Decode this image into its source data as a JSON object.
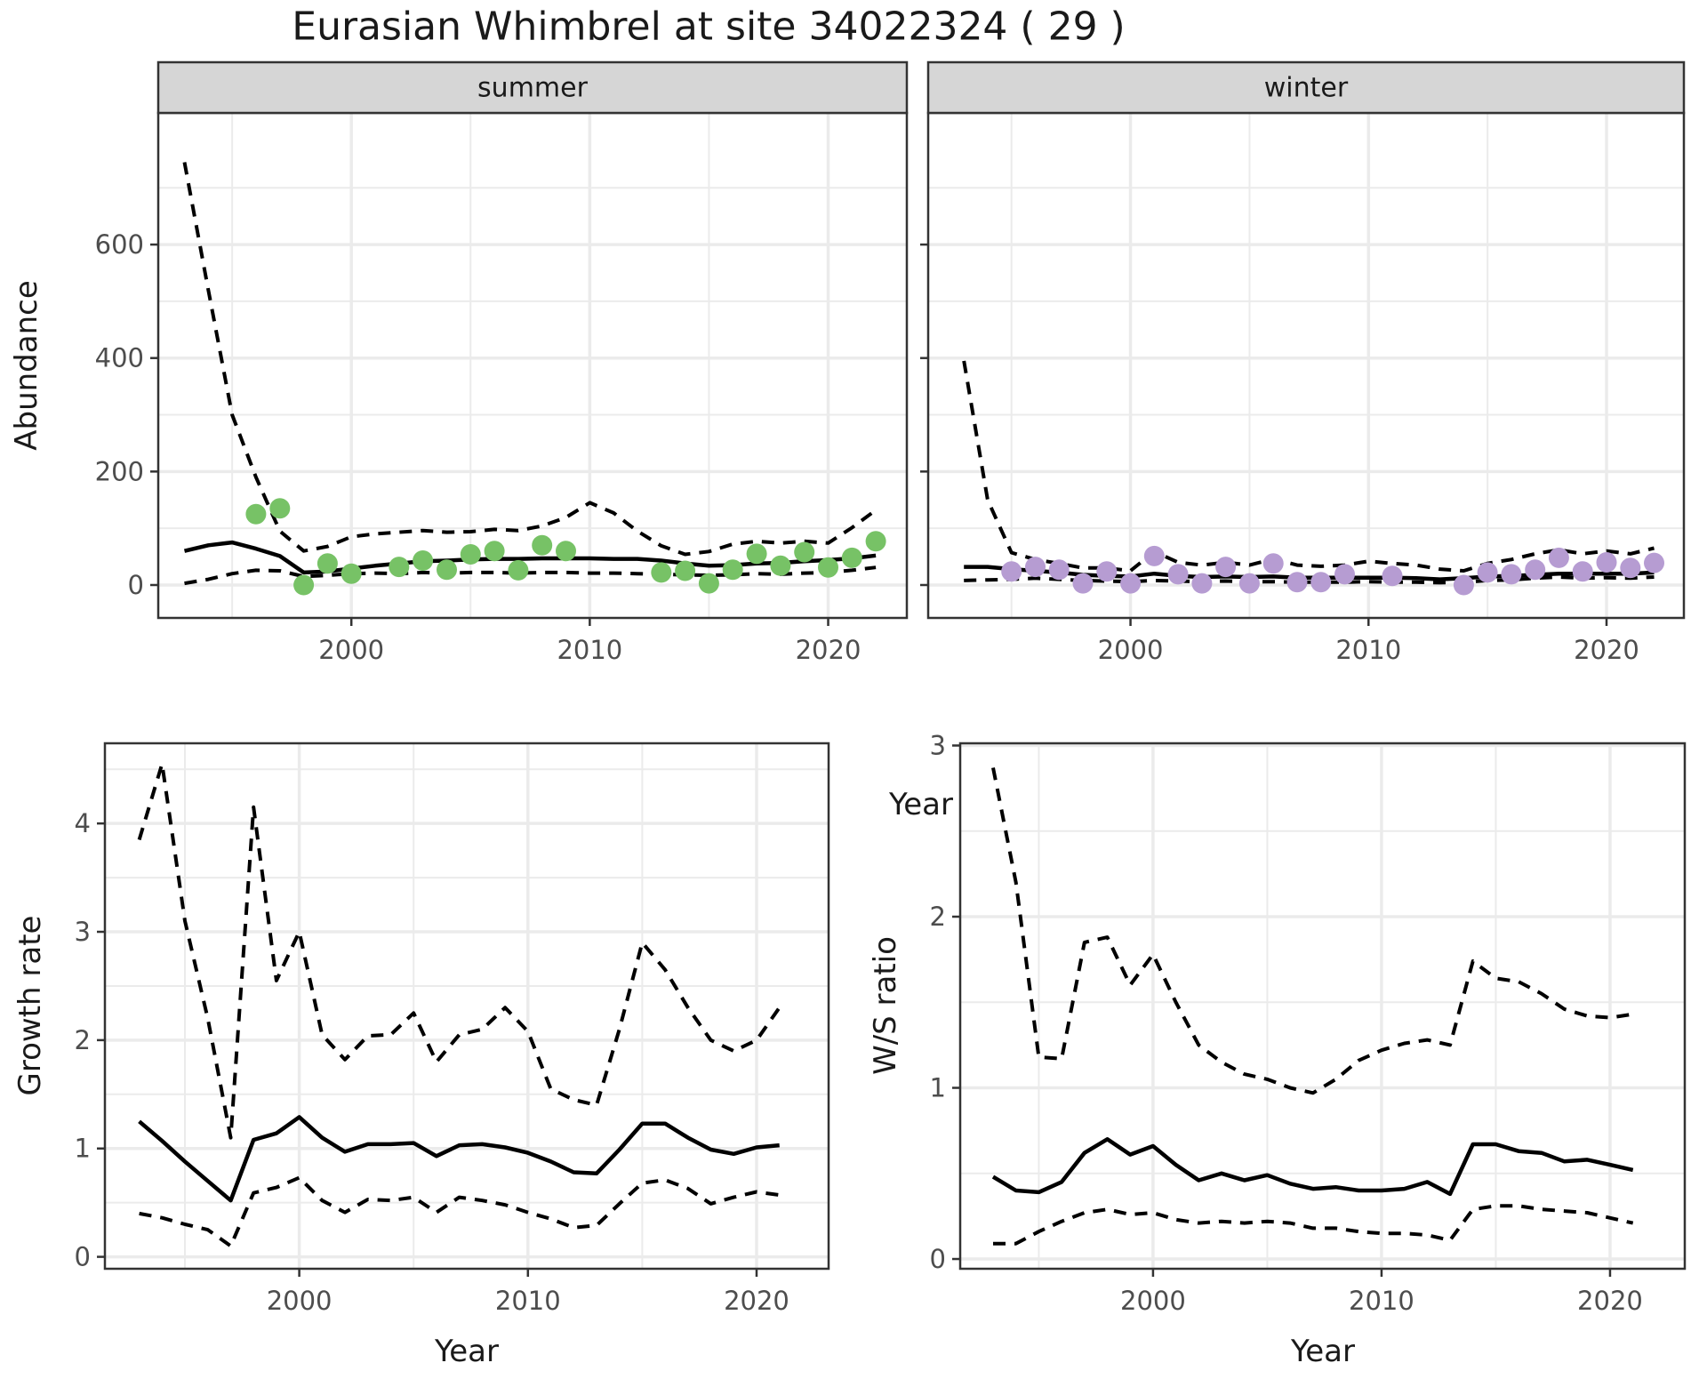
{
  "title": "Eurasian Whimbrel at site 34022324 ( 29 )",
  "labels": {
    "abundance_axis": "Abundance",
    "year_axis_top": "Year",
    "growth_axis": "Growth rate",
    "ws_axis": "W/S ratio",
    "year_axis_growth": "Year",
    "year_axis_ws": "Year",
    "facet_summer": "summer",
    "facet_winter": "winter"
  },
  "colors": {
    "summer_point": "#77c266",
    "winter_point": "#b69cd2",
    "line": "#000000",
    "strip_bg": "#d6d6d6",
    "panel_border": "#333333",
    "grid": "#ebebeb",
    "tick_text": "#4d4d4d",
    "background": "#ffffff"
  },
  "chart_data": [
    {
      "id": "abundance_summer",
      "type": "line",
      "facet_label": "summer",
      "xlabel": "Year",
      "ylabel": "Abundance",
      "xlim": [
        1991.9,
        2023.3
      ],
      "ylim": [
        -58,
        832
      ],
      "x_ticks": [
        2000,
        2010,
        2020
      ],
      "x_minor": [
        1995,
        2005,
        2015
      ],
      "y_ticks": [
        0,
        200,
        400,
        600
      ],
      "y_minor": [
        100,
        300,
        500,
        700
      ],
      "show_y_labels": true,
      "grid": true,
      "legend": "none",
      "series": [
        {
          "name": "mean",
          "style": "solid",
          "x": [
            1993,
            1994,
            1995,
            1996,
            1997,
            1998,
            1999,
            2000,
            2001,
            2002,
            2003,
            2004,
            2005,
            2006,
            2007,
            2008,
            2009,
            2010,
            2011,
            2012,
            2013,
            2014,
            2015,
            2016,
            2017,
            2018,
            2019,
            2020,
            2021,
            2022
          ],
          "y": [
            60,
            70,
            75,
            64,
            51,
            22,
            24,
            29,
            34,
            38,
            42,
            43,
            45,
            46,
            46,
            47,
            47,
            47,
            46,
            46,
            43,
            38,
            34,
            35,
            38,
            39,
            42,
            44,
            47,
            52
          ]
        },
        {
          "name": "upper_ci",
          "style": "dashed",
          "x": [
            1993,
            1994,
            1995,
            1996,
            1997,
            1998,
            1999,
            2000,
            2001,
            2002,
            2003,
            2004,
            2005,
            2006,
            2007,
            2008,
            2009,
            2010,
            2011,
            2012,
            2013,
            2014,
            2015,
            2016,
            2017,
            2018,
            2019,
            2020,
            2021,
            2022
          ],
          "y": [
            745,
            520,
            300,
            190,
            95,
            60,
            68,
            85,
            90,
            93,
            96,
            93,
            94,
            98,
            96,
            104,
            119,
            145,
            127,
            95,
            69,
            54,
            59,
            72,
            77,
            74,
            77,
            74,
            101,
            132
          ]
        },
        {
          "name": "lower_ci",
          "style": "dashed",
          "x": [
            1993,
            1994,
            1995,
            1996,
            1997,
            1998,
            1999,
            2000,
            2001,
            2002,
            2003,
            2004,
            2005,
            2006,
            2007,
            2008,
            2009,
            2010,
            2011,
            2012,
            2013,
            2014,
            2015,
            2016,
            2017,
            2018,
            2019,
            2020,
            2021,
            2022
          ],
          "y": [
            3,
            10,
            20,
            26,
            25,
            15,
            17,
            20,
            21,
            20,
            22,
            21,
            22,
            22,
            21,
            22,
            22,
            21,
            21,
            20,
            19,
            18,
            17,
            18,
            20,
            19,
            21,
            22,
            26,
            31
          ]
        }
      ],
      "points": {
        "name": "observed_counts",
        "color_key": "summer_point",
        "x": [
          1996,
          1997,
          1998,
          1999,
          2000,
          2002,
          2003,
          2004,
          2005,
          2006,
          2007,
          2008,
          2009,
          2013,
          2014,
          2015,
          2016,
          2017,
          2018,
          2019,
          2020,
          2021,
          2022
        ],
        "y": [
          125,
          135,
          0,
          38,
          20,
          32,
          43,
          27,
          54,
          60,
          26,
          70,
          60,
          22,
          25,
          3,
          27,
          55,
          34,
          58,
          31,
          48,
          77
        ]
      }
    },
    {
      "id": "abundance_winter",
      "type": "line",
      "facet_label": "winter",
      "xlabel": "Year",
      "ylabel": "Abundance",
      "xlim": [
        1991.5,
        2023.25
      ],
      "ylim": [
        -58,
        832
      ],
      "x_ticks": [
        2000,
        2010,
        2020
      ],
      "x_minor": [
        1995,
        2005,
        2015
      ],
      "y_ticks": [
        0,
        200,
        400,
        600
      ],
      "y_minor": [
        100,
        300,
        500,
        700
      ],
      "show_y_labels": false,
      "grid": true,
      "legend": "none",
      "series": [
        {
          "name": "mean",
          "style": "solid",
          "x": [
            1993,
            1994,
            1995,
            1996,
            1997,
            1998,
            1999,
            2000,
            2001,
            2002,
            2003,
            2004,
            2005,
            2006,
            2007,
            2008,
            2009,
            2010,
            2011,
            2012,
            2013,
            2014,
            2015,
            2016,
            2017,
            2018,
            2019,
            2020,
            2021,
            2022
          ],
          "y": [
            32,
            32,
            28,
            25,
            22,
            18,
            16,
            15,
            20,
            16,
            14,
            15,
            14,
            15,
            13,
            13,
            13,
            13,
            13,
            12,
            10,
            12,
            15,
            16,
            18,
            20,
            20,
            20,
            20,
            22
          ]
        },
        {
          "name": "upper_ci",
          "style": "dashed",
          "x": [
            1993,
            1994,
            1995,
            1996,
            1997,
            1998,
            1999,
            2000,
            2001,
            2002,
            2003,
            2004,
            2005,
            2006,
            2007,
            2008,
            2009,
            2010,
            2011,
            2012,
            2013,
            2014,
            2015,
            2016,
            2017,
            2018,
            2019,
            2020,
            2021,
            2022
          ],
          "y": [
            395,
            150,
            57,
            45,
            38,
            30,
            30,
            25,
            59,
            40,
            35,
            40,
            35,
            46,
            35,
            33,
            35,
            42,
            38,
            35,
            28,
            25,
            38,
            45,
            55,
            62,
            55,
            60,
            55,
            65
          ]
        },
        {
          "name": "lower_ci",
          "style": "dashed",
          "x": [
            1993,
            1994,
            1995,
            1996,
            1997,
            1998,
            1999,
            2000,
            2001,
            2002,
            2003,
            2004,
            2005,
            2006,
            2007,
            2008,
            2009,
            2010,
            2011,
            2012,
            2013,
            2014,
            2015,
            2016,
            2017,
            2018,
            2019,
            2020,
            2021,
            2022
          ],
          "y": [
            8,
            9,
            10,
            12,
            10,
            8,
            7,
            6,
            8,
            7,
            6,
            7,
            6,
            6,
            5,
            5,
            5,
            6,
            5,
            5,
            4,
            5,
            8,
            9,
            12,
            14,
            12,
            13,
            12,
            14
          ]
        }
      ],
      "points": {
        "name": "observed_counts",
        "color_key": "winter_point",
        "x": [
          1995,
          1996,
          1997,
          1998,
          1999,
          2000,
          2001,
          2002,
          2003,
          2004,
          2005,
          2006,
          2007,
          2008,
          2009,
          2011,
          2014,
          2015,
          2016,
          2017,
          2018,
          2019,
          2020,
          2021,
          2022
        ],
        "y": [
          24,
          32,
          27,
          3,
          24,
          3,
          51,
          19,
          3,
          32,
          3,
          38,
          5,
          5,
          19,
          16,
          0,
          22,
          19,
          27,
          48,
          24,
          40,
          30,
          39
        ]
      }
    },
    {
      "id": "growth_rate",
      "type": "line",
      "facet_label": null,
      "xlabel": "Year",
      "ylabel": "Growth rate",
      "xlim": [
        1991.5,
        2023.15
      ],
      "ylim": [
        -0.11,
        4.74
      ],
      "x_ticks": [
        2000,
        2010,
        2020
      ],
      "x_minor": [
        1995,
        2005,
        2015
      ],
      "y_ticks": [
        0,
        1,
        2,
        3,
        4
      ],
      "y_minor": [
        0.5,
        1.5,
        2.5,
        3.5,
        4.5
      ],
      "show_y_labels": true,
      "grid": true,
      "legend": "none",
      "series": [
        {
          "name": "mean",
          "style": "solid",
          "x": [
            1993,
            1994,
            1995,
            1996,
            1997,
            1998,
            1999,
            2000,
            2001,
            2002,
            2003,
            2004,
            2005,
            2006,
            2007,
            2008,
            2009,
            2010,
            2011,
            2012,
            2013,
            2014,
            2015,
            2016,
            2017,
            2018,
            2019,
            2020,
            2021
          ],
          "y": [
            1.25,
            1.07,
            0.88,
            0.7,
            0.52,
            1.08,
            1.14,
            1.29,
            1.1,
            0.97,
            1.04,
            1.04,
            1.05,
            0.93,
            1.03,
            1.04,
            1.01,
            0.96,
            0.88,
            0.78,
            0.77,
            0.99,
            1.23,
            1.23,
            1.1,
            0.99,
            0.95,
            1.01,
            1.03
          ]
        },
        {
          "name": "upper_ci",
          "style": "dashed",
          "x": [
            1993,
            1994,
            1995,
            1996,
            1997,
            1998,
            1999,
            2000,
            2001,
            2002,
            2003,
            2004,
            2005,
            2006,
            2007,
            2008,
            2009,
            2010,
            2011,
            2012,
            2013,
            2014,
            2015,
            2016,
            2017,
            2018,
            2019,
            2020,
            2021
          ],
          "y": [
            3.85,
            4.55,
            3.1,
            2.2,
            1.1,
            4.15,
            2.55,
            3.0,
            2.05,
            1.82,
            2.04,
            2.05,
            2.25,
            1.8,
            2.05,
            2.1,
            2.3,
            2.08,
            1.55,
            1.45,
            1.4,
            2.1,
            2.9,
            2.65,
            2.3,
            2.0,
            1.9,
            2.0,
            2.3
          ]
        },
        {
          "name": "lower_ci",
          "style": "dashed",
          "x": [
            1993,
            1994,
            1995,
            1996,
            1997,
            1998,
            1999,
            2000,
            2001,
            2002,
            2003,
            2004,
            2005,
            2006,
            2007,
            2008,
            2009,
            2010,
            2011,
            2012,
            2013,
            2014,
            2015,
            2016,
            2017,
            2018,
            2019,
            2020,
            2021
          ],
          "y": [
            0.4,
            0.36,
            0.3,
            0.25,
            0.1,
            0.59,
            0.64,
            0.73,
            0.52,
            0.41,
            0.53,
            0.52,
            0.55,
            0.41,
            0.55,
            0.52,
            0.48,
            0.41,
            0.35,
            0.27,
            0.29,
            0.49,
            0.68,
            0.71,
            0.63,
            0.49,
            0.55,
            0.6,
            0.57
          ]
        }
      ],
      "points": null
    },
    {
      "id": "ws_ratio",
      "type": "line",
      "facet_label": null,
      "xlabel": "Year",
      "ylabel": "W/S ratio",
      "xlim": [
        1991.56,
        2023.27
      ],
      "ylim": [
        -0.057,
        3.013
      ],
      "x_ticks": [
        2000,
        2010,
        2020
      ],
      "x_minor": [
        1995,
        2005,
        2015
      ],
      "y_ticks": [
        0,
        1,
        2,
        3
      ],
      "y_minor": [
        0.5,
        1.5,
        2.5
      ],
      "show_y_labels": true,
      "grid": true,
      "legend": "none",
      "series": [
        {
          "name": "mean",
          "style": "solid",
          "x": [
            1993,
            1994,
            1995,
            1996,
            1997,
            1998,
            1999,
            2000,
            2001,
            2002,
            2003,
            2004,
            2005,
            2006,
            2007,
            2008,
            2009,
            2010,
            2011,
            2012,
            2013,
            2014,
            2015,
            2016,
            2017,
            2018,
            2019,
            2020,
            2021
          ],
          "y": [
            0.48,
            0.4,
            0.39,
            0.45,
            0.62,
            0.7,
            0.61,
            0.66,
            0.55,
            0.46,
            0.5,
            0.46,
            0.49,
            0.44,
            0.41,
            0.42,
            0.4,
            0.4,
            0.41,
            0.45,
            0.38,
            0.67,
            0.67,
            0.63,
            0.62,
            0.57,
            0.58,
            0.55,
            0.52
          ]
        },
        {
          "name": "upper_ci",
          "style": "dashed",
          "x": [
            1993,
            1994,
            1995,
            1996,
            1997,
            1998,
            1999,
            2000,
            2001,
            2002,
            2003,
            2004,
            2005,
            2006,
            2007,
            2008,
            2009,
            2010,
            2011,
            2012,
            2013,
            2014,
            2015,
            2016,
            2017,
            2018,
            2019,
            2020,
            2021
          ],
          "y": [
            2.87,
            2.2,
            1.18,
            1.17,
            1.85,
            1.88,
            1.6,
            1.78,
            1.5,
            1.25,
            1.15,
            1.08,
            1.05,
            1.0,
            0.97,
            1.05,
            1.16,
            1.22,
            1.26,
            1.28,
            1.25,
            1.74,
            1.64,
            1.62,
            1.55,
            1.46,
            1.42,
            1.41,
            1.43
          ]
        },
        {
          "name": "lower_ci",
          "style": "dashed",
          "x": [
            1993,
            1994,
            1995,
            1996,
            1997,
            1998,
            1999,
            2000,
            2001,
            2002,
            2003,
            2004,
            2005,
            2006,
            2007,
            2008,
            2009,
            2010,
            2011,
            2012,
            2013,
            2014,
            2015,
            2016,
            2017,
            2018,
            2019,
            2020,
            2021
          ],
          "y": [
            0.09,
            0.09,
            0.16,
            0.22,
            0.27,
            0.29,
            0.26,
            0.27,
            0.23,
            0.21,
            0.22,
            0.21,
            0.22,
            0.21,
            0.18,
            0.18,
            0.16,
            0.15,
            0.15,
            0.14,
            0.11,
            0.29,
            0.31,
            0.31,
            0.29,
            0.28,
            0.27,
            0.24,
            0.21
          ]
        }
      ],
      "points": null
    }
  ]
}
